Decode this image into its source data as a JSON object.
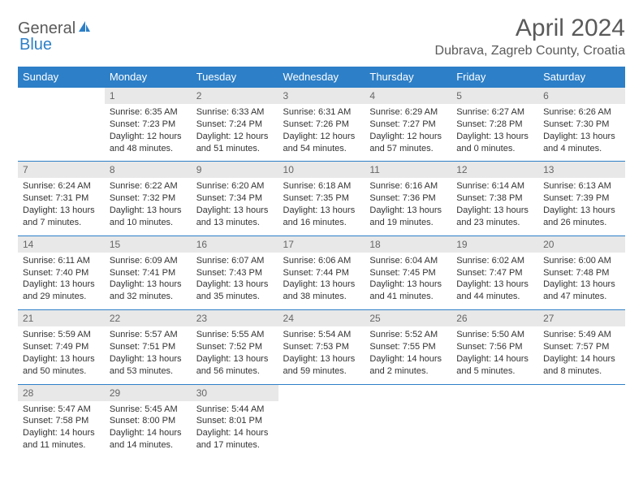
{
  "brand": {
    "part1": "General",
    "part2": "Blue"
  },
  "title": "April 2024",
  "location": "Dubrava, Zagreb County, Croatia",
  "colors": {
    "header_bg": "#2d7fc7",
    "header_text": "#ffffff",
    "daynum_bg": "#e8e8e8",
    "daynum_text": "#666666",
    "body_text": "#333333",
    "title_text": "#5a5a5a",
    "page_bg": "#ffffff"
  },
  "weekdays": [
    "Sunday",
    "Monday",
    "Tuesday",
    "Wednesday",
    "Thursday",
    "Friday",
    "Saturday"
  ],
  "weeks": [
    [
      null,
      {
        "n": "1",
        "sr": "6:35 AM",
        "ss": "7:23 PM",
        "dl": "12 hours and 48 minutes."
      },
      {
        "n": "2",
        "sr": "6:33 AM",
        "ss": "7:24 PM",
        "dl": "12 hours and 51 minutes."
      },
      {
        "n": "3",
        "sr": "6:31 AM",
        "ss": "7:26 PM",
        "dl": "12 hours and 54 minutes."
      },
      {
        "n": "4",
        "sr": "6:29 AM",
        "ss": "7:27 PM",
        "dl": "12 hours and 57 minutes."
      },
      {
        "n": "5",
        "sr": "6:27 AM",
        "ss": "7:28 PM",
        "dl": "13 hours and 0 minutes."
      },
      {
        "n": "6",
        "sr": "6:26 AM",
        "ss": "7:30 PM",
        "dl": "13 hours and 4 minutes."
      }
    ],
    [
      {
        "n": "7",
        "sr": "6:24 AM",
        "ss": "7:31 PM",
        "dl": "13 hours and 7 minutes."
      },
      {
        "n": "8",
        "sr": "6:22 AM",
        "ss": "7:32 PM",
        "dl": "13 hours and 10 minutes."
      },
      {
        "n": "9",
        "sr": "6:20 AM",
        "ss": "7:34 PM",
        "dl": "13 hours and 13 minutes."
      },
      {
        "n": "10",
        "sr": "6:18 AM",
        "ss": "7:35 PM",
        "dl": "13 hours and 16 minutes."
      },
      {
        "n": "11",
        "sr": "6:16 AM",
        "ss": "7:36 PM",
        "dl": "13 hours and 19 minutes."
      },
      {
        "n": "12",
        "sr": "6:14 AM",
        "ss": "7:38 PM",
        "dl": "13 hours and 23 minutes."
      },
      {
        "n": "13",
        "sr": "6:13 AM",
        "ss": "7:39 PM",
        "dl": "13 hours and 26 minutes."
      }
    ],
    [
      {
        "n": "14",
        "sr": "6:11 AM",
        "ss": "7:40 PM",
        "dl": "13 hours and 29 minutes."
      },
      {
        "n": "15",
        "sr": "6:09 AM",
        "ss": "7:41 PM",
        "dl": "13 hours and 32 minutes."
      },
      {
        "n": "16",
        "sr": "6:07 AM",
        "ss": "7:43 PM",
        "dl": "13 hours and 35 minutes."
      },
      {
        "n": "17",
        "sr": "6:06 AM",
        "ss": "7:44 PM",
        "dl": "13 hours and 38 minutes."
      },
      {
        "n": "18",
        "sr": "6:04 AM",
        "ss": "7:45 PM",
        "dl": "13 hours and 41 minutes."
      },
      {
        "n": "19",
        "sr": "6:02 AM",
        "ss": "7:47 PM",
        "dl": "13 hours and 44 minutes."
      },
      {
        "n": "20",
        "sr": "6:00 AM",
        "ss": "7:48 PM",
        "dl": "13 hours and 47 minutes."
      }
    ],
    [
      {
        "n": "21",
        "sr": "5:59 AM",
        "ss": "7:49 PM",
        "dl": "13 hours and 50 minutes."
      },
      {
        "n": "22",
        "sr": "5:57 AM",
        "ss": "7:51 PM",
        "dl": "13 hours and 53 minutes."
      },
      {
        "n": "23",
        "sr": "5:55 AM",
        "ss": "7:52 PM",
        "dl": "13 hours and 56 minutes."
      },
      {
        "n": "24",
        "sr": "5:54 AM",
        "ss": "7:53 PM",
        "dl": "13 hours and 59 minutes."
      },
      {
        "n": "25",
        "sr": "5:52 AM",
        "ss": "7:55 PM",
        "dl": "14 hours and 2 minutes."
      },
      {
        "n": "26",
        "sr": "5:50 AM",
        "ss": "7:56 PM",
        "dl": "14 hours and 5 minutes."
      },
      {
        "n": "27",
        "sr": "5:49 AM",
        "ss": "7:57 PM",
        "dl": "14 hours and 8 minutes."
      }
    ],
    [
      {
        "n": "28",
        "sr": "5:47 AM",
        "ss": "7:58 PM",
        "dl": "14 hours and 11 minutes."
      },
      {
        "n": "29",
        "sr": "5:45 AM",
        "ss": "8:00 PM",
        "dl": "14 hours and 14 minutes."
      },
      {
        "n": "30",
        "sr": "5:44 AM",
        "ss": "8:01 PM",
        "dl": "14 hours and 17 minutes."
      },
      null,
      null,
      null,
      null
    ]
  ],
  "labels": {
    "sunrise": "Sunrise: ",
    "sunset": "Sunset: ",
    "daylight": "Daylight: "
  }
}
